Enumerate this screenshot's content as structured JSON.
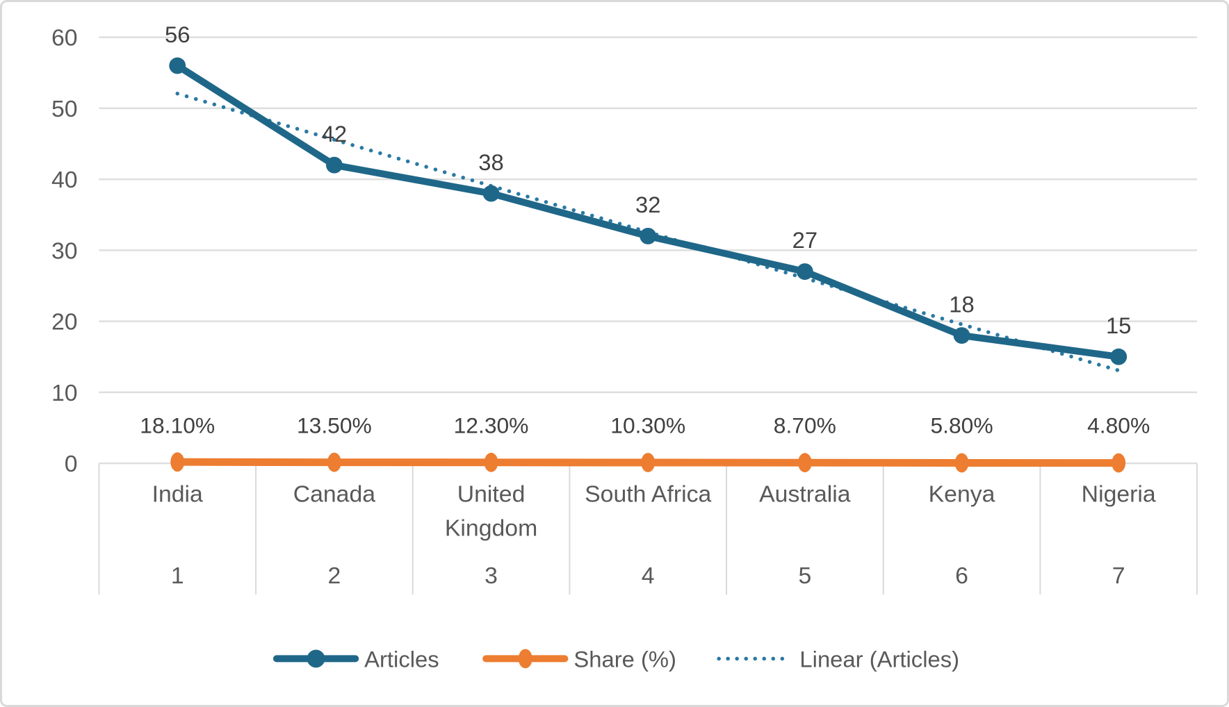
{
  "chart_data": {
    "type": "line",
    "title": "",
    "xlabel": "",
    "ylabel": "",
    "categories": [
      "India",
      "Canada",
      "United Kingdom",
      "South Africa",
      "Australia",
      "Kenya",
      "Nigeria"
    ],
    "category_wrap": [
      [
        "India"
      ],
      [
        "Canada"
      ],
      [
        "United",
        "Kingdom"
      ],
      [
        "South Africa"
      ],
      [
        "Australia"
      ],
      [
        "Kenya"
      ],
      [
        "Nigeria"
      ]
    ],
    "x": [
      1,
      2,
      3,
      4,
      5,
      6,
      7
    ],
    "series": [
      {
        "name": "Articles",
        "values": [
          56,
          42,
          38,
          32,
          27,
          18,
          15
        ],
        "labels": [
          "56",
          "42",
          "38",
          "32",
          "27",
          "18",
          "15"
        ],
        "color": "#1F6789",
        "marker": "circle"
      },
      {
        "name": "Share (%)",
        "values": [
          0.181,
          0.135,
          0.123,
          0.103,
          0.087,
          0.058,
          0.048
        ],
        "labels": [
          "18.10%",
          "13.50%",
          "12.30%",
          "10.30%",
          "8.70%",
          "5.80%",
          "4.80%"
        ],
        "color": "#ED7D31",
        "marker": "ellipse"
      }
    ],
    "trendline": {
      "name": "Linear (Articles)",
      "of": "Articles",
      "style": "dotted",
      "color": "#2A79A3"
    },
    "y_axis": {
      "min": 0,
      "max": 60,
      "step": 10,
      "ticks": [
        "0",
        "10",
        "20",
        "30",
        "40",
        "50",
        "60"
      ]
    },
    "ylim": [
      0,
      60
    ],
    "grid": true,
    "legend_position": "bottom",
    "legend": [
      "Articles",
      "Share (%)",
      "Linear (Articles)"
    ]
  },
  "colors": {
    "articles": "#1F6789",
    "share": "#ED7D31",
    "trendline": "#2A79A3",
    "gridline": "#DEDEDE",
    "separator": "#D9D9D9",
    "axis_text": "#595959",
    "data_label_text": "#404040",
    "frame_border": "#D9D9D9",
    "background": "#FFFFFF"
  }
}
